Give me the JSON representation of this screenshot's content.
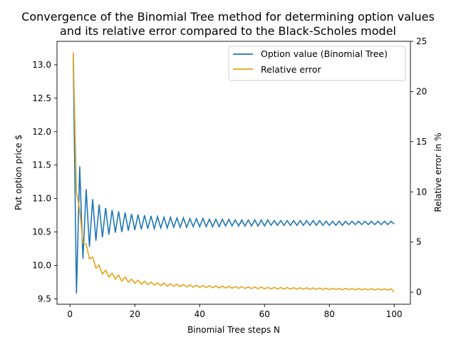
{
  "chart_data": {
    "type": "line",
    "title_line1": "Convergence of the Binomial Tree method for determining option values",
    "title_line2": "and its relative error compared to the Black-Scholes model",
    "xlabel": "Binomial Tree steps N",
    "ylabel_left": "Put option price $",
    "ylabel_right": "Relative error in %",
    "xlim": [
      -4,
      105
    ],
    "ylim_left": [
      9.42,
      13.35
    ],
    "ylim_right": [
      -1.2,
      25
    ],
    "xticks": [
      "0",
      "20",
      "40",
      "60",
      "80",
      "100"
    ],
    "yticks_left": [
      "9.5",
      "10.0",
      "10.5",
      "11.0",
      "11.5",
      "12.0",
      "12.5",
      "13.0"
    ],
    "yticks_right": [
      "0",
      "5",
      "10",
      "15",
      "20",
      "25"
    ],
    "colors": {
      "option_value": "#1f77b4",
      "relative_error": "#e8a317"
    },
    "legend_position": "upper right",
    "series": [
      {
        "name": "Option value (Binomial Tree)",
        "axis": "left",
        "x_start": 1,
        "x_end": 100,
        "description_values": [
          13.16,
          9.58,
          11.48,
          10.1,
          11.14,
          10.28,
          10.99,
          10.37,
          10.91,
          10.42,
          10.86,
          10.46,
          10.83,
          10.49,
          10.81,
          10.5,
          10.79,
          10.52,
          10.77,
          10.53,
          10.76,
          10.54,
          10.75,
          10.55,
          10.74,
          10.55,
          10.73,
          10.56,
          10.72,
          10.56,
          10.72,
          10.57,
          10.71,
          10.57,
          10.71,
          10.57,
          10.7,
          10.58,
          10.7,
          10.58,
          10.7,
          10.58,
          10.69,
          10.58,
          10.69,
          10.58,
          10.69,
          10.59,
          10.69,
          10.59,
          10.68,
          10.59,
          10.68,
          10.59,
          10.68,
          10.59,
          10.68,
          10.59,
          10.68,
          10.59,
          10.68,
          10.6,
          10.67,
          10.6,
          10.67,
          10.6,
          10.67,
          10.6,
          10.67,
          10.6,
          10.67,
          10.6,
          10.67,
          10.6,
          10.67,
          10.6,
          10.67,
          10.6,
          10.66,
          10.6,
          10.66,
          10.6,
          10.66,
          10.6,
          10.66,
          10.61,
          10.66,
          10.61,
          10.66,
          10.61,
          10.66,
          10.61,
          10.66,
          10.61,
          10.66,
          10.61,
          10.66,
          10.61,
          10.66,
          10.62
        ]
      },
      {
        "name": "Relative error",
        "axis": "right",
        "x_start": 1,
        "x_end": 100,
        "description_values": [
          23.9,
          10.0,
          8.2,
          4.9,
          4.8,
          3.3,
          3.5,
          2.4,
          2.7,
          1.8,
          2.2,
          1.5,
          1.9,
          1.3,
          1.7,
          1.1,
          1.5,
          1.0,
          1.3,
          0.9,
          1.2,
          0.8,
          1.1,
          0.75,
          1.0,
          0.7,
          0.95,
          0.65,
          0.9,
          0.6,
          0.85,
          0.58,
          0.8,
          0.55,
          0.76,
          0.52,
          0.73,
          0.5,
          0.7,
          0.48,
          0.67,
          0.46,
          0.65,
          0.44,
          0.62,
          0.42,
          0.6,
          0.41,
          0.58,
          0.4,
          0.56,
          0.38,
          0.55,
          0.37,
          0.53,
          0.36,
          0.52,
          0.35,
          0.5,
          0.34,
          0.49,
          0.33,
          0.48,
          0.32,
          0.47,
          0.31,
          0.46,
          0.3,
          0.45,
          0.3,
          0.44,
          0.29,
          0.43,
          0.28,
          0.42,
          0.28,
          0.41,
          0.27,
          0.4,
          0.26,
          0.39,
          0.26,
          0.38,
          0.25,
          0.37,
          0.25,
          0.36,
          0.24,
          0.36,
          0.24,
          0.35,
          0.23,
          0.35,
          0.23,
          0.34,
          0.22,
          0.33,
          0.22,
          0.33,
          0.02
        ]
      }
    ]
  }
}
